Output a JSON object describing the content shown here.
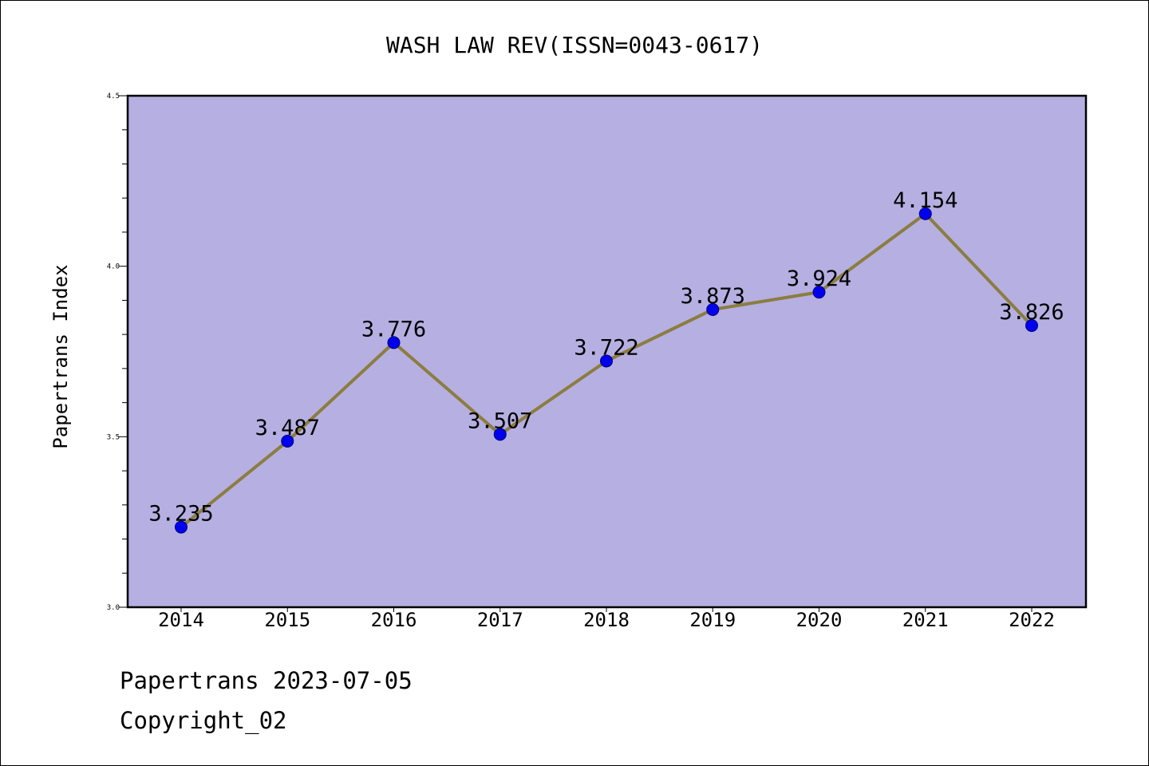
{
  "chart_data": {
    "type": "line",
    "title": "WASH LAW REV(ISSN=0043-0617)",
    "xlabel": "",
    "ylabel": "Papertrans Index",
    "categories": [
      "2014",
      "2015",
      "2016",
      "2017",
      "2018",
      "2019",
      "2020",
      "2021",
      "2022"
    ],
    "series": [
      {
        "values": [
          3.235,
          3.487,
          3.776,
          3.507,
          3.722,
          3.873,
          3.924,
          4.154,
          3.826
        ]
      }
    ],
    "data_labels": [
      "3.235",
      "3.487",
      "3.776",
      "3.507",
      "3.722",
      "3.873",
      "3.924",
      "4.154",
      "3.826"
    ],
    "ylim": [
      3.0,
      4.5
    ],
    "yticks": [
      "3.0",
      "3.5",
      "4.0",
      "4.5"
    ],
    "grid": false,
    "colors": {
      "plot_background": "#b5afe2",
      "line": "#8b7d3e",
      "marker": "#0000ee"
    }
  },
  "footer": {
    "line1": "Papertrans 2023-07-05",
    "line2": "Copyright_02"
  }
}
